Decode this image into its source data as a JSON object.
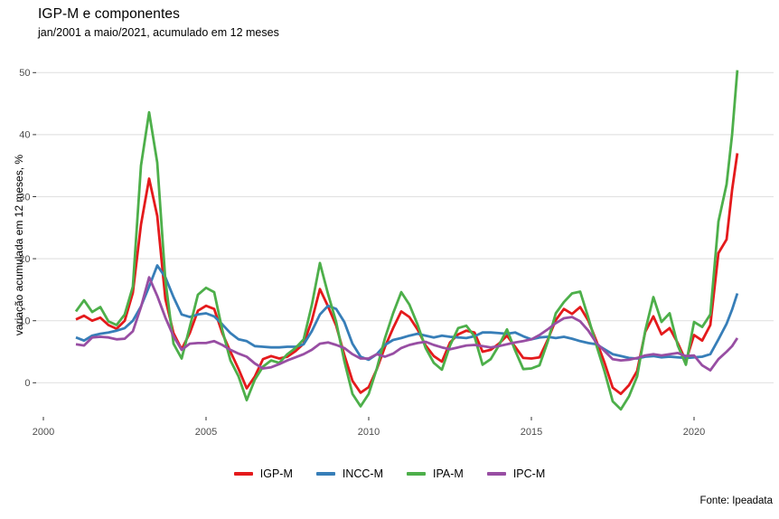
{
  "chart_data": {
    "type": "line",
    "title": "IGP-M e componentes",
    "subtitle": "jan/2001 a maio/2021, acumulado em 12 meses",
    "ylabel": "variação acumulada em 12 meses, %",
    "caption": "Fonte: Ipeadata",
    "x_ticks": [
      2000,
      2005,
      2010,
      2015,
      2020
    ],
    "y_ticks": [
      0,
      10,
      20,
      30,
      40,
      50
    ],
    "ylim": [
      -5.5,
      50.8
    ],
    "x_range_years": [
      1999.8,
      2022.4
    ],
    "grid": "horizontal-major-only",
    "legend_position": "bottom",
    "axis_text_color": "#4d4d4d",
    "gridline_color": "#e3e3e3",
    "x": [
      2001.0,
      2001.25,
      2001.5,
      2001.75,
      2002.0,
      2002.25,
      2002.5,
      2002.75,
      2003.0,
      2003.25,
      2003.5,
      2003.75,
      2004.0,
      2004.25,
      2004.5,
      2004.75,
      2005.0,
      2005.25,
      2005.5,
      2005.75,
      2006.0,
      2006.25,
      2006.5,
      2006.75,
      2007.0,
      2007.25,
      2007.5,
      2007.75,
      2008.0,
      2008.25,
      2008.5,
      2008.75,
      2009.0,
      2009.25,
      2009.5,
      2009.75,
      2010.0,
      2010.25,
      2010.5,
      2010.75,
      2011.0,
      2011.25,
      2011.5,
      2011.75,
      2012.0,
      2012.25,
      2012.5,
      2012.75,
      2013.0,
      2013.25,
      2013.5,
      2013.75,
      2014.0,
      2014.25,
      2014.5,
      2014.75,
      2015.0,
      2015.25,
      2015.5,
      2015.75,
      2016.0,
      2016.25,
      2016.5,
      2016.75,
      2017.0,
      2017.25,
      2017.5,
      2017.75,
      2018.0,
      2018.25,
      2018.5,
      2018.75,
      2019.0,
      2019.25,
      2019.5,
      2019.75,
      2020.0,
      2020.25,
      2020.5,
      2020.75,
      2021.0,
      2021.17,
      2021.33
    ],
    "series": [
      {
        "name": "IGP-M",
        "color": "#E41A1C",
        "values": [
          10.2,
          10.8,
          10.0,
          10.5,
          9.3,
          8.7,
          10.0,
          14.5,
          25.5,
          32.9,
          26.9,
          13.5,
          8.0,
          5.4,
          8.0,
          11.6,
          12.4,
          11.9,
          8.0,
          5.0,
          2.2,
          -0.9,
          1.0,
          3.8,
          4.3,
          3.9,
          4.2,
          5.1,
          6.3,
          10.0,
          15.1,
          12.3,
          9.2,
          4.5,
          0.3,
          -1.6,
          -0.7,
          2.2,
          5.8,
          8.8,
          11.5,
          10.6,
          8.6,
          6.0,
          4.3,
          3.4,
          6.5,
          7.8,
          8.4,
          8.1,
          5.0,
          5.3,
          6.3,
          7.6,
          5.8,
          4.0,
          3.9,
          4.1,
          6.9,
          10.1,
          11.9,
          11.1,
          12.2,
          10.0,
          6.7,
          3.2,
          -0.8,
          -1.8,
          -0.4,
          1.9,
          8.2,
          10.7,
          7.8,
          8.8,
          6.4,
          3.5,
          7.7,
          6.8,
          9.3,
          20.9,
          23.1,
          31.1,
          37.0
        ]
      },
      {
        "name": "INCC-M",
        "color": "#377EB8",
        "values": [
          7.3,
          6.8,
          7.6,
          7.9,
          8.1,
          8.4,
          8.8,
          10.0,
          12.3,
          15.5,
          18.9,
          17.0,
          13.8,
          11.0,
          10.6,
          11.0,
          11.2,
          10.7,
          9.4,
          8.0,
          7.0,
          6.7,
          5.9,
          5.8,
          5.7,
          5.7,
          5.8,
          5.8,
          6.2,
          8.3,
          11.0,
          12.4,
          11.9,
          9.8,
          6.3,
          4.2,
          3.7,
          4.6,
          6.1,
          6.9,
          7.2,
          7.6,
          7.9,
          7.6,
          7.3,
          7.6,
          7.4,
          7.3,
          7.2,
          7.5,
          8.1,
          8.1,
          8.0,
          7.9,
          8.1,
          7.5,
          7.0,
          7.3,
          7.4,
          7.2,
          7.4,
          7.1,
          6.7,
          6.4,
          6.2,
          5.4,
          4.6,
          4.3,
          4.0,
          3.9,
          4.2,
          4.3,
          4.1,
          4.2,
          4.1,
          4.0,
          4.1,
          4.2,
          4.6,
          7.0,
          9.5,
          11.8,
          14.4
        ]
      },
      {
        "name": "IPA-M",
        "color": "#4DAF4A",
        "values": [
          11.5,
          13.3,
          11.4,
          12.2,
          9.9,
          9.3,
          11.0,
          15.5,
          35.0,
          43.6,
          35.5,
          16.5,
          6.3,
          3.9,
          9.0,
          14.2,
          15.3,
          14.6,
          8.5,
          3.6,
          1.0,
          -2.8,
          0.5,
          2.6,
          3.6,
          3.2,
          4.6,
          5.6,
          7.0,
          12.5,
          19.3,
          14.3,
          9.8,
          3.5,
          -1.8,
          -3.8,
          -1.8,
          2.3,
          7.2,
          11.2,
          14.6,
          12.6,
          9.4,
          5.6,
          3.2,
          2.1,
          6.0,
          8.8,
          9.2,
          7.5,
          2.9,
          3.8,
          6.0,
          8.6,
          5.2,
          2.2,
          2.3,
          2.8,
          6.6,
          11.2,
          13.0,
          14.4,
          14.7,
          10.5,
          6.0,
          1.8,
          -3.0,
          -4.3,
          -2.2,
          1.0,
          8.4,
          13.8,
          9.8,
          11.2,
          6.0,
          2.9,
          9.8,
          9.0,
          11.0,
          26.0,
          32.0,
          40.0,
          50.4
        ]
      },
      {
        "name": "IPC-M",
        "color": "#984EA3",
        "values": [
          6.2,
          6.0,
          7.3,
          7.4,
          7.3,
          7.0,
          7.1,
          8.3,
          12.2,
          17.0,
          14.0,
          10.5,
          7.5,
          5.3,
          6.3,
          6.4,
          6.4,
          6.7,
          6.1,
          5.3,
          4.7,
          4.2,
          3.1,
          2.3,
          2.5,
          3.0,
          3.6,
          4.1,
          4.6,
          5.3,
          6.3,
          6.5,
          6.1,
          5.6,
          4.6,
          3.9,
          3.9,
          4.6,
          4.2,
          4.7,
          5.6,
          6.1,
          6.4,
          6.6,
          6.1,
          5.7,
          5.4,
          5.7,
          6.0,
          6.1,
          5.9,
          5.7,
          5.9,
          6.2,
          6.5,
          6.7,
          7.0,
          7.7,
          8.6,
          9.6,
          10.4,
          10.6,
          9.9,
          8.4,
          6.4,
          5.1,
          3.8,
          3.6,
          3.7,
          4.0,
          4.4,
          4.6,
          4.4,
          4.6,
          4.8,
          4.3,
          4.4,
          2.8,
          2.0,
          3.8,
          5.0,
          5.9,
          7.2
        ]
      }
    ]
  }
}
